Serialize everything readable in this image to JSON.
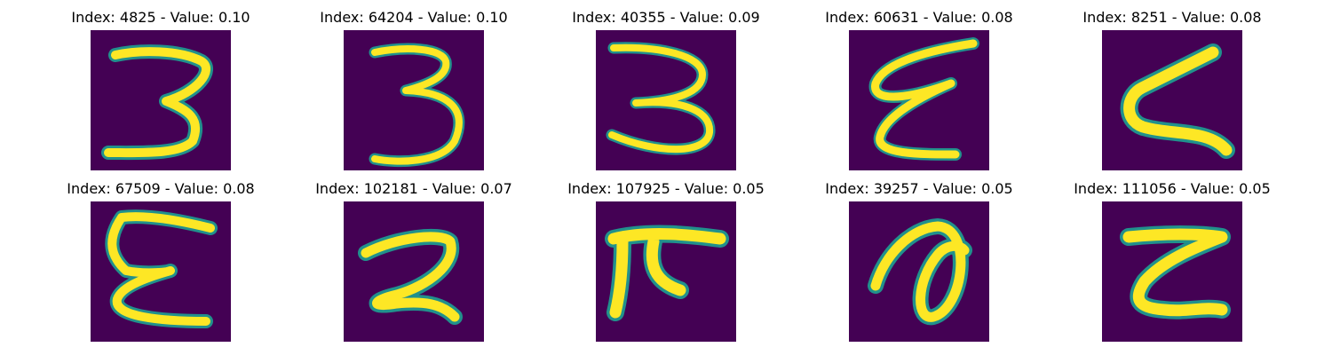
{
  "figure": {
    "colors": {
      "background": "#ffffff",
      "image_background": "#440154",
      "stroke_edge": "#21918c",
      "stroke_core": "#fde725"
    },
    "panels": [
      {
        "title": "Index: 4825 - Value: 0.10",
        "index": 4825,
        "value": 0.1,
        "glyph": "3"
      },
      {
        "title": "Index: 64204 - Value: 0.10",
        "index": 64204,
        "value": 0.1,
        "glyph": "3"
      },
      {
        "title": "Index: 40355 - Value: 0.09",
        "index": 40355,
        "value": 0.09,
        "glyph": "3"
      },
      {
        "title": "Index: 60631 - Value: 0.08",
        "index": 60631,
        "value": 0.08,
        "glyph": "ε"
      },
      {
        "title": "Index: 8251 - Value: 0.08",
        "index": 8251,
        "value": 0.08,
        "glyph": "Z-like"
      },
      {
        "title": "Index: 67509 - Value: 0.08",
        "index": 67509,
        "value": 0.08,
        "glyph": "E"
      },
      {
        "title": "Index: 102181 - Value: 0.07",
        "index": 102181,
        "value": 0.07,
        "glyph": "2"
      },
      {
        "title": "Index: 107925 - Value: 0.05",
        "index": 107925,
        "value": 0.05,
        "glyph": "T-like"
      },
      {
        "title": "Index: 39257 - Value: 0.05",
        "index": 39257,
        "value": 0.05,
        "glyph": "loop"
      },
      {
        "title": "Index: 111056 - Value: 0.05",
        "index": 111056,
        "value": 0.05,
        "glyph": "Z-like"
      }
    ]
  }
}
